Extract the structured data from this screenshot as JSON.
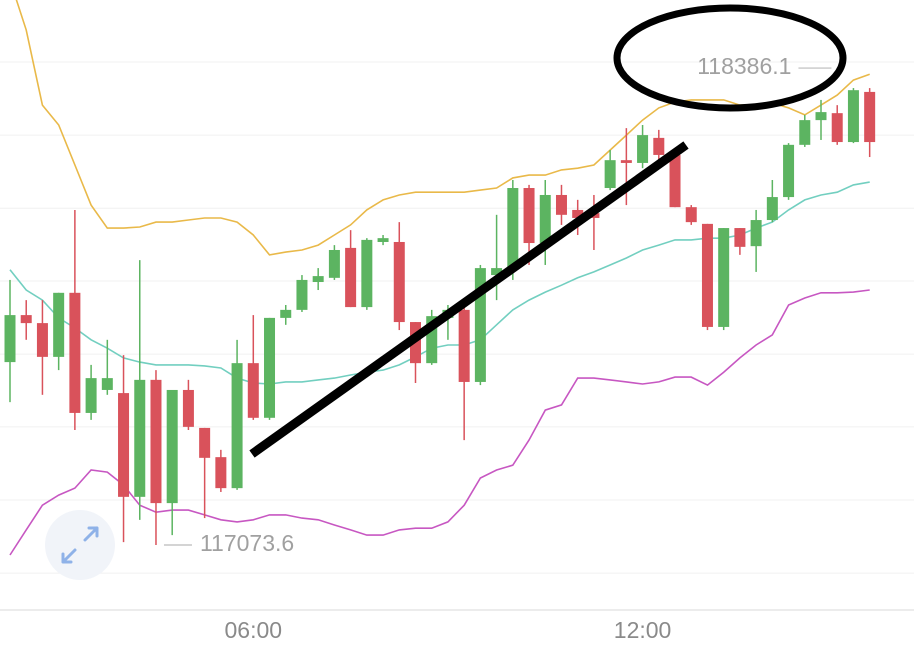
{
  "chart_data": {
    "type": "candlestick",
    "categories": [
      null,
      null,
      null,
      null,
      null,
      null,
      null,
      null,
      null,
      null,
      null,
      null,
      null,
      null,
      null,
      "06:00",
      null,
      null,
      null,
      null,
      null,
      null,
      null,
      null,
      null,
      null,
      null,
      null,
      null,
      null,
      null,
      null,
      null,
      null,
      null,
      null,
      null,
      null,
      null,
      "12:00",
      null,
      null,
      null,
      null,
      null,
      null,
      null,
      null,
      null,
      null,
      null,
      null,
      null,
      null
    ],
    "open": [
      117599,
      117734,
      117711,
      117614,
      117798,
      117453,
      117519,
      117510,
      117212,
      117548,
      117194,
      117519,
      117410,
      117326,
      117237,
      117596,
      117439,
      117726,
      117749,
      117829,
      117841,
      117927,
      117757,
      117944,
      117944,
      117714,
      117596,
      117726,
      117749,
      117542,
      117849,
      117864,
      118099,
      117941,
      118079,
      118036,
      118027,
      118099,
      118179,
      118171,
      118243,
      118194,
      118044,
      117996,
      117700,
      117984,
      117932,
      118007,
      118073,
      118223,
      118294,
      118314,
      118231,
      118375
    ],
    "high": [
      117835,
      117777,
      117777,
      117798,
      118036,
      117591,
      117663,
      117619,
      117892,
      117576,
      117519,
      117548,
      117410,
      117347,
      117663,
      117734,
      117726,
      117763,
      117849,
      117869,
      117935,
      117978,
      117955,
      117964,
      118001,
      117714,
      117749,
      117763,
      117763,
      117878,
      118022,
      118122,
      118108,
      118122,
      118108,
      118065,
      118079,
      118208,
      118271,
      118280,
      118266,
      118208,
      118050,
      117996,
      117984,
      117984,
      118036,
      118122,
      118228,
      118309,
      118352,
      118337,
      118386.1,
      118386
    ],
    "low": [
      117484,
      117663,
      117505,
      117576,
      117404,
      117433,
      117505,
      117082,
      117146,
      117073.6,
      117102,
      117404,
      117151,
      117226,
      117232,
      117433,
      117433,
      117706,
      117743,
      117806,
      117835,
      117757,
      117749,
      117935,
      117691,
      117539,
      117591,
      117663,
      117375,
      117533,
      117777,
      117835,
      117878,
      117878,
      117993,
      117964,
      117921,
      118093,
      118050,
      118156,
      118179,
      118044,
      117993,
      117691,
      117691,
      117907,
      117858,
      118001,
      118065,
      118217,
      118237,
      118223,
      118228,
      118188
    ],
    "close": [
      117734,
      117711,
      117614,
      117798,
      117453,
      117553,
      117553,
      117212,
      117548,
      117194,
      117519,
      117413,
      117324,
      117237,
      117596,
      117439,
      117726,
      117749,
      117835,
      117846,
      117921,
      117757,
      117950,
      117955,
      117714,
      117596,
      117731,
      117749,
      117542,
      117869,
      117869,
      118099,
      117941,
      118079,
      118022,
      118013,
      118013,
      118179,
      118171,
      118251,
      118194,
      118044,
      118001,
      117700,
      117984,
      117930,
      118007,
      118073,
      118223,
      118294,
      118317,
      118231,
      118380,
      118231
    ],
    "up_color": "#5cb461",
    "down_color": "#d9525b",
    "bands": [
      {
        "color": "#e9b949",
        "values": [
          118696,
          118553,
          118337,
          118280,
          118165,
          118050,
          117984,
          117984,
          117987,
          118001,
          118001,
          118007,
          118013,
          118013,
          118001,
          117964,
          117907,
          117915,
          117921,
          117935,
          117964,
          117993,
          118036,
          118065,
          118079,
          118087,
          118087,
          118087,
          118087,
          118093,
          118099,
          118128,
          118136,
          118136,
          118151,
          118156,
          118165,
          118208,
          118251,
          118294,
          118329,
          118346,
          118352,
          118352,
          118352,
          118337,
          118337,
          118343,
          118329,
          118309,
          118337,
          118366,
          118409,
          118426
        ]
      },
      {
        "color": "#72cfc0",
        "values": [
          117864,
          117806,
          117777,
          117726,
          117697,
          117663,
          117639,
          117611,
          117599,
          117591,
          117591,
          117591,
          117588,
          117582,
          117553,
          117539,
          117536,
          117542,
          117542,
          117548,
          117553,
          117562,
          117570,
          117576,
          117591,
          117614,
          117639,
          117648,
          117648,
          117663,
          117706,
          117749,
          117777,
          117800,
          117820,
          117841,
          117858,
          117878,
          117898,
          117921,
          117935,
          117950,
          117950,
          117955,
          117955,
          117964,
          117984,
          118001,
          118036,
          118065,
          118079,
          118087,
          118108,
          118116
        ]
      },
      {
        "color": "#c757c2",
        "values": [
          117045,
          117117,
          117188,
          117217,
          117237,
          117289,
          117283,
          117246,
          117188,
          117168,
          117174,
          117174,
          117160,
          117146,
          117140,
          117146,
          117160,
          117160,
          117151,
          117146,
          117131,
          117117,
          117102,
          117102,
          117117,
          117122,
          117122,
          117140,
          117188,
          117266,
          117289,
          117303,
          117375,
          117461,
          117476,
          117553,
          117553,
          117548,
          117542,
          117536,
          117542,
          117556,
          117556,
          117533,
          117570,
          117611,
          117648,
          117677,
          117763,
          117783,
          117798,
          117798,
          117800,
          117806
        ]
      }
    ],
    "ylim": [
      116887,
      118639
    ],
    "yticks": [
      118461,
      118251,
      118041,
      117832,
      117622,
      117413,
      117203,
      116993
    ],
    "grid": true
  }
}
